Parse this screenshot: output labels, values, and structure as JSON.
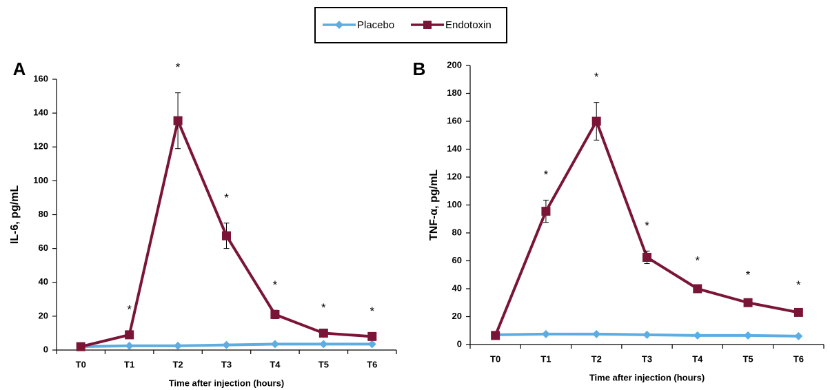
{
  "legend": {
    "items": [
      {
        "label": "Placebo",
        "color": "#5DADE2",
        "marker": "diamond"
      },
      {
        "label": "Endotoxin",
        "color": "#7B1538",
        "marker": "square"
      }
    ]
  },
  "chart_data": [
    {
      "type": "line",
      "panel_label": "A",
      "xlabel": "Time after injection (hours)",
      "ylabel": "IL-6, pg/mL",
      "categories": [
        "T0",
        "T1",
        "T2",
        "T3",
        "T4",
        "T5",
        "T6"
      ],
      "ylim": [
        0,
        160
      ],
      "yticks": [
        0,
        20,
        40,
        60,
        80,
        100,
        120,
        140,
        160
      ],
      "series": [
        {
          "name": "Placebo",
          "color": "#5DADE2",
          "marker": "diamond",
          "values": [
            2,
            2.5,
            2.5,
            3,
            3.5,
            3.5,
            3.5
          ]
        },
        {
          "name": "Endotoxin",
          "color": "#7B1538",
          "marker": "square",
          "values": [
            2,
            9,
            135.5,
            67.5,
            21,
            10,
            8
          ],
          "error": [
            0,
            0,
            16.5,
            7.5,
            2.5,
            0,
            0
          ]
        }
      ],
      "significance": [
        false,
        true,
        true,
        true,
        true,
        true,
        true
      ],
      "significance_symbol": "*"
    },
    {
      "type": "line",
      "panel_label": "B",
      "xlabel": "Time after injection (hours)",
      "ylabel": "TNF-α, pg/mL",
      "categories": [
        "T0",
        "T1",
        "T2",
        "T3",
        "T4",
        "T5",
        "T6"
      ],
      "ylim": [
        0,
        200
      ],
      "yticks": [
        0,
        20,
        40,
        60,
        80,
        100,
        120,
        140,
        160,
        180,
        200
      ],
      "series": [
        {
          "name": "Placebo",
          "color": "#5DADE2",
          "marker": "diamond",
          "values": [
            7,
            7.5,
            7.5,
            7,
            6.5,
            6.5,
            6
          ]
        },
        {
          "name": "Endotoxin",
          "color": "#7B1538",
          "marker": "square",
          "values": [
            6.5,
            95.5,
            160,
            62.5,
            40,
            30,
            23
          ],
          "error": [
            0,
            8,
            13.5,
            4.5,
            2,
            1.5,
            1.5
          ]
        }
      ],
      "significance": [
        false,
        true,
        true,
        true,
        true,
        true,
        true
      ],
      "significance_symbol": "*"
    }
  ]
}
